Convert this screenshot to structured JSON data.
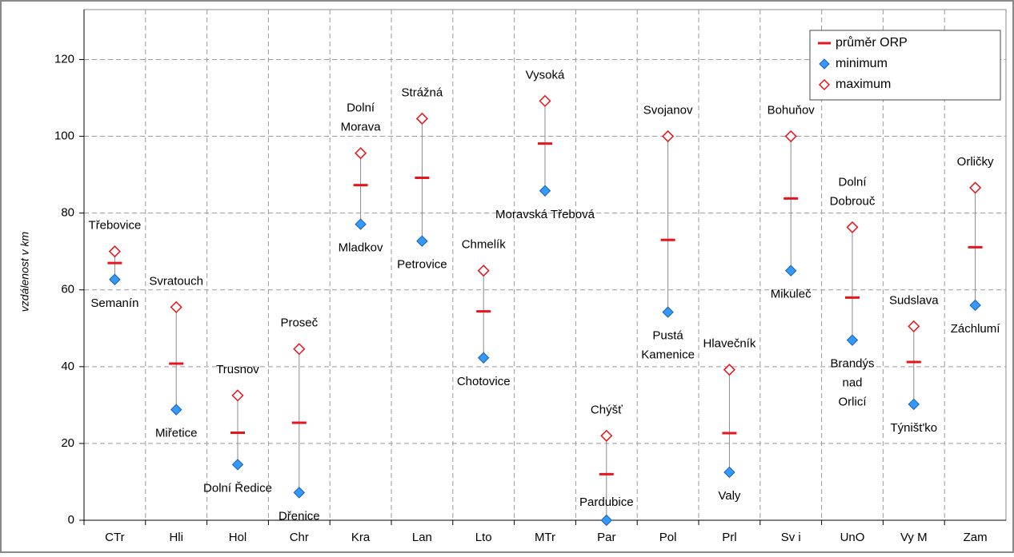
{
  "chart_data": {
    "type": "range",
    "y_label": "vzdálenost v km",
    "categories": [
      "CTr",
      "Hli",
      "Hol",
      "Chr",
      "Kra",
      "Lan",
      "Lto",
      "MTr",
      "Par",
      "Pol",
      "Prl",
      "Sv i",
      "UnO",
      "Vy M",
      "Zam"
    ],
    "series": [
      {
        "name": "průměr ORP",
        "color": "#e8141b",
        "values": [
          67,
          40.8,
          22.8,
          25.4,
          87.3,
          89.2,
          54.4,
          98.1,
          12,
          73,
          22.7,
          83.8,
          58,
          41.2,
          71.1
        ]
      },
      {
        "name": "minimum",
        "color": "#3399ff",
        "values": [
          62.7,
          28.8,
          14.5,
          7.2,
          77.1,
          72.7,
          42.3,
          85.8,
          0,
          54.2,
          12.5,
          65,
          46.9,
          30.2,
          56
        ]
      },
      {
        "name": "maximum",
        "color": "#e8141b",
        "values": [
          70,
          55.5,
          32.5,
          44.6,
          95.6,
          104.6,
          65,
          109.2,
          22,
          100,
          39.2,
          100,
          76.3,
          50.5,
          86.6
        ]
      }
    ],
    "min_labels": [
      "Semanín",
      "Miřetice",
      "Dolní Ředice",
      "Dřenice",
      "Mladkov",
      "Petrovice",
      "Chotovice",
      "Moravská Třebová",
      "Pardubice",
      "Pustá\nKamenice",
      "Valy",
      "Mikuleč",
      "Brandýs\nnad\nOrlicí",
      "Týništ'ko",
      "Záchlumí"
    ],
    "max_labels": [
      "Třebovice",
      "Svratouch",
      "Trusnov",
      "Proseč",
      "Dolní\nMorava",
      "Strážná",
      "Chmelík",
      "Vysoká",
      "Chýšť",
      "Svojanov",
      "Hlavečník",
      "Bohuňov",
      "Dolní\nDobrouč",
      "Sudslava",
      "Orličky"
    ],
    "ylim": [
      0,
      133
    ],
    "yticks": [
      0,
      20,
      40,
      60,
      80,
      100,
      120
    ],
    "grid": true,
    "legend": "top-right"
  }
}
